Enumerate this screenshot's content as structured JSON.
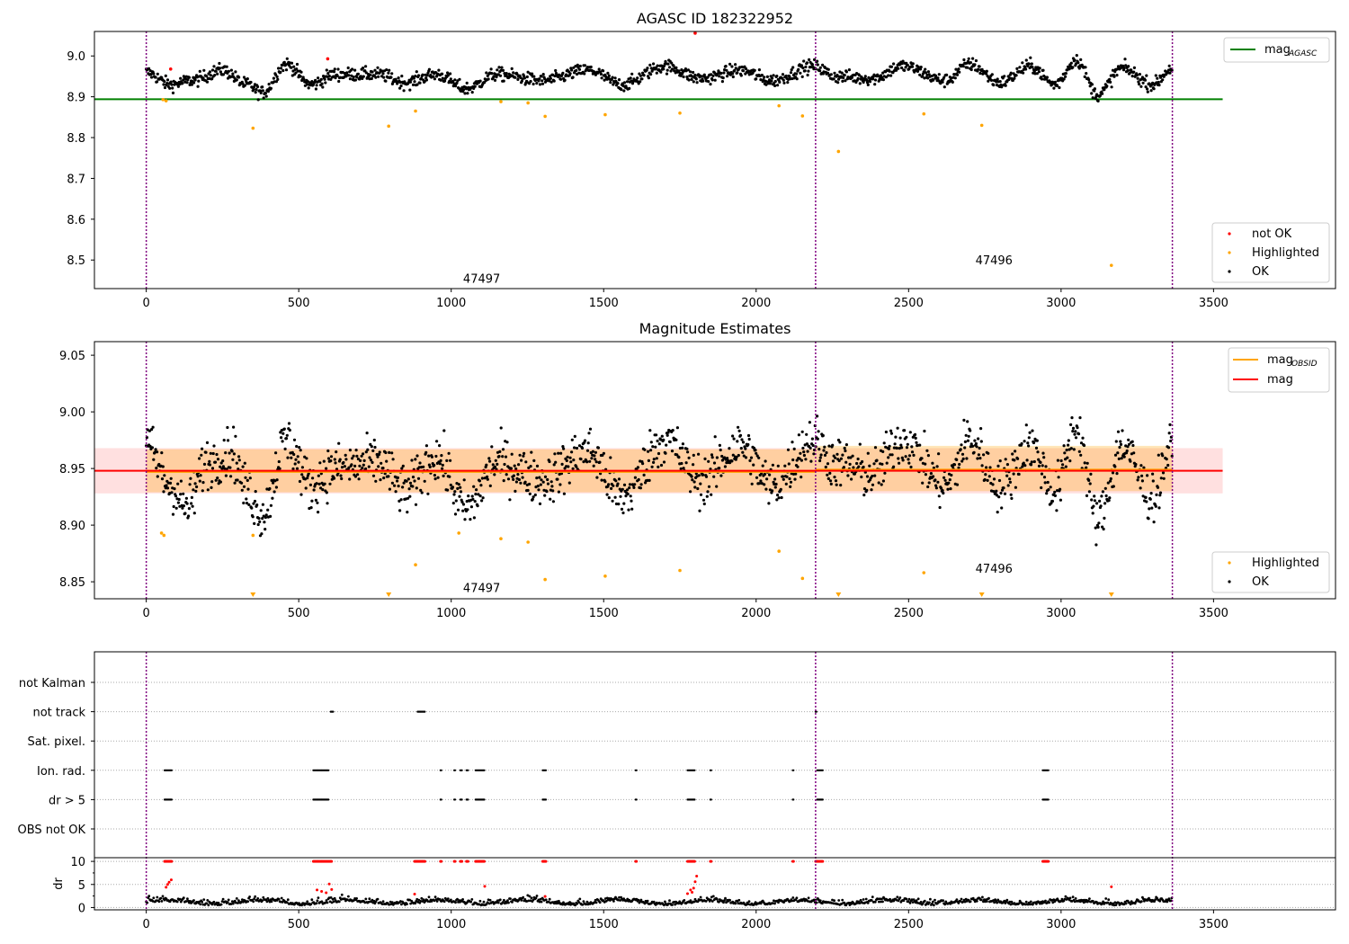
{
  "chart_data": [
    {
      "type": "scatter",
      "title": "AGASC ID 182322952",
      "xlim": [
        -170,
        3900
      ],
      "ylim": [
        8.43,
        9.06
      ],
      "xticks": [
        "0",
        "500",
        "1000",
        "1500",
        "2000",
        "2500",
        "3000",
        "3500"
      ],
      "yticks": [
        "8.5",
        "8.6",
        "8.7",
        "8.8",
        "8.9",
        "9.0"
      ],
      "vlines": [
        0,
        2195,
        3365
      ],
      "obsid_labels": [
        {
          "text": "47497",
          "x": 1100,
          "y": 8.455
        },
        {
          "text": "47496",
          "x": 2780,
          "y": 8.5
        }
      ],
      "mag_agasc": {
        "value": 8.894,
        "x_range": [
          -170,
          3530
        ],
        "color": "#008000"
      },
      "legend_lines": [
        {
          "label": "mag",
          "sub": "AGASC",
          "color": "#008000"
        }
      ],
      "legend_points": [
        {
          "label": "not OK",
          "color": "#ff0000"
        },
        {
          "label": "Highlighted",
          "color": "#ffa500"
        },
        {
          "label": "OK",
          "color": "#000000"
        }
      ],
      "ok_trend": [
        [
          0,
          8.96
        ],
        [
          80,
          8.93
        ],
        [
          150,
          8.94
        ],
        [
          250,
          8.965
        ],
        [
          330,
          8.93
        ],
        [
          380,
          8.91
        ],
        [
          460,
          8.98
        ],
        [
          540,
          8.93
        ],
        [
          620,
          8.955
        ],
        [
          760,
          8.955
        ],
        [
          850,
          8.935
        ],
        [
          950,
          8.955
        ],
        [
          1050,
          8.92
        ],
        [
          1150,
          8.955
        ],
        [
          1300,
          8.94
        ],
        [
          1450,
          8.965
        ],
        [
          1560,
          8.93
        ],
        [
          1700,
          8.975
        ],
        [
          1820,
          8.945
        ],
        [
          1950,
          8.965
        ],
        [
          2050,
          8.94
        ],
        [
          2190,
          8.975
        ],
        [
          2260,
          8.95
        ],
        [
          2380,
          8.945
        ],
        [
          2480,
          8.975
        ],
        [
          2620,
          8.94
        ],
        [
          2700,
          8.98
        ],
        [
          2800,
          8.935
        ],
        [
          2900,
          8.975
        ],
        [
          2980,
          8.93
        ],
        [
          3050,
          8.99
        ],
        [
          3120,
          8.905
        ],
        [
          3200,
          8.97
        ],
        [
          3300,
          8.93
        ],
        [
          3365,
          8.97
        ]
      ],
      "not_ok_points": [
        [
          80,
          8.968
        ],
        [
          595,
          8.993
        ],
        [
          1800,
          9.056
        ]
      ],
      "highlighted_points": [
        [
          55,
          8.893
        ],
        [
          65,
          8.89
        ],
        [
          350,
          8.823
        ],
        [
          795,
          8.828
        ],
        [
          883,
          8.865
        ],
        [
          1163,
          8.888
        ],
        [
          1252,
          8.885
        ],
        [
          1308,
          8.852
        ],
        [
          1505,
          8.856
        ],
        [
          1750,
          8.86
        ],
        [
          2075,
          8.878
        ],
        [
          2152,
          8.853
        ],
        [
          2270,
          8.766
        ],
        [
          2550,
          8.858
        ],
        [
          2740,
          8.83
        ],
        [
          3165,
          8.487
        ]
      ]
    },
    {
      "type": "scatter",
      "title": "Magnitude Estimates",
      "xlim": [
        -170,
        3900
      ],
      "ylim": [
        8.835,
        9.062
      ],
      "xticks": [
        "0",
        "500",
        "1000",
        "1500",
        "2000",
        "2500",
        "3000",
        "3500"
      ],
      "yticks": [
        "8.85",
        "8.90",
        "8.95",
        "9.00",
        "9.05"
      ],
      "vlines": [
        0,
        2195,
        3365
      ],
      "obsid_labels": [
        {
          "text": "47497",
          "x": 1100,
          "y": 8.845
        },
        {
          "text": "47496",
          "x": 2780,
          "y": 8.862
        }
      ],
      "mag": {
        "value": 8.948,
        "band": [
          8.928,
          8.968
        ],
        "x_range": [
          -170,
          3530
        ],
        "color": "#ff0000"
      },
      "mag_obsid": [
        {
          "value": 8.947,
          "band": [
            8.929,
            8.967
          ],
          "x_range": [
            0,
            2195
          ],
          "color": "#ffa500"
        },
        {
          "value": 8.949,
          "band": [
            8.93,
            8.97
          ],
          "x_range": [
            2195,
            3365
          ],
          "color": "#ffa500"
        }
      ],
      "legend_lines": [
        {
          "label": "mag",
          "sub": "OBSID",
          "color": "#ffa500"
        },
        {
          "label": "mag",
          "sub": "",
          "color": "#ff0000"
        }
      ],
      "legend_points": [
        {
          "label": "Highlighted",
          "color": "#ffa500"
        },
        {
          "label": "OK",
          "color": "#000000"
        }
      ],
      "ok_trend": [
        [
          0,
          8.97
        ],
        [
          80,
          8.935
        ],
        [
          130,
          8.915
        ],
        [
          200,
          8.955
        ],
        [
          280,
          8.965
        ],
        [
          330,
          8.93
        ],
        [
          380,
          8.91
        ],
        [
          460,
          8.975
        ],
        [
          540,
          8.935
        ],
        [
          620,
          8.95
        ],
        [
          760,
          8.955
        ],
        [
          850,
          8.93
        ],
        [
          950,
          8.96
        ],
        [
          1050,
          8.915
        ],
        [
          1150,
          8.955
        ],
        [
          1300,
          8.94
        ],
        [
          1450,
          8.965
        ],
        [
          1560,
          8.925
        ],
        [
          1700,
          8.975
        ],
        [
          1820,
          8.94
        ],
        [
          1950,
          8.97
        ],
        [
          2050,
          8.935
        ],
        [
          2190,
          8.975
        ],
        [
          2260,
          8.955
        ],
        [
          2380,
          8.945
        ],
        [
          2480,
          8.975
        ],
        [
          2620,
          8.935
        ],
        [
          2700,
          8.975
        ],
        [
          2800,
          8.935
        ],
        [
          2900,
          8.97
        ],
        [
          2980,
          8.93
        ],
        [
          3050,
          8.985
        ],
        [
          3120,
          8.905
        ],
        [
          3200,
          8.97
        ],
        [
          3300,
          8.925
        ],
        [
          3365,
          8.97
        ]
      ],
      "highlighted_points": [
        [
          50,
          8.893
        ],
        [
          58,
          8.891
        ],
        [
          350,
          8.891
        ],
        [
          883,
          8.865
        ],
        [
          1025,
          8.893
        ],
        [
          1163,
          8.888
        ],
        [
          1252,
          8.885
        ],
        [
          1308,
          8.852
        ],
        [
          1505,
          8.855
        ],
        [
          1750,
          8.86
        ],
        [
          2075,
          8.877
        ],
        [
          2152,
          8.853
        ],
        [
          2550,
          8.858
        ]
      ],
      "highlighted_below": [
        350,
        795,
        2270,
        2740,
        3165
      ]
    },
    {
      "type": "scatter",
      "title": "",
      "xlim": [
        -170,
        3900
      ],
      "xticks": [
        "0",
        "500",
        "1000",
        "1500",
        "2000",
        "2500",
        "3000",
        "3500"
      ],
      "vlines": [
        0,
        2195,
        3365
      ],
      "flag_labels": [
        "not Kalman",
        "not track",
        "Sat. pixel.",
        "Ion. rad.",
        "dr > 5",
        "OBS not OK"
      ],
      "flag_ranges": {
        "not Kalman": [],
        "not track": [
          [
            605,
            615
          ],
          [
            890,
            915
          ],
          [
            2195,
            2200
          ]
        ],
        "Sat. pixel.": [],
        "Ion. rad.": [
          [
            60,
            85
          ],
          [
            548,
            600
          ],
          [
            965,
            970
          ],
          [
            1010,
            1015
          ],
          [
            1030,
            1036
          ],
          [
            1050,
            1056
          ],
          [
            1080,
            1110
          ],
          [
            1300,
            1312
          ],
          [
            1605,
            1608
          ],
          [
            1775,
            1800
          ],
          [
            1850,
            1853
          ],
          [
            2120,
            2123
          ],
          [
            2200,
            2220
          ],
          [
            2940,
            2960
          ]
        ],
        "dr > 5": [
          [
            60,
            85
          ],
          [
            548,
            600
          ],
          [
            965,
            970
          ],
          [
            1010,
            1015
          ],
          [
            1030,
            1036
          ],
          [
            1050,
            1056
          ],
          [
            1080,
            1110
          ],
          [
            1300,
            1312
          ],
          [
            1605,
            1608
          ],
          [
            1775,
            1800
          ],
          [
            1850,
            1853
          ],
          [
            2120,
            2123
          ],
          [
            2200,
            2220
          ],
          [
            2940,
            2960
          ]
        ],
        "OBS not OK": []
      },
      "dr_ylabel": "dr",
      "dr_yticks": [
        "0",
        "5",
        "10"
      ],
      "dr_ylim": [
        -0.5,
        10.8
      ],
      "dr_red_ranges": [
        [
          60,
          85
        ],
        [
          548,
          610
        ],
        [
          880,
          915
        ],
        [
          965,
          970
        ],
        [
          1010,
          1015
        ],
        [
          1030,
          1036
        ],
        [
          1050,
          1056
        ],
        [
          1080,
          1110
        ],
        [
          1300,
          1312
        ],
        [
          1605,
          1608
        ],
        [
          1775,
          1800
        ],
        [
          1850,
          1853
        ],
        [
          2120,
          2123
        ],
        [
          2195,
          2220
        ],
        [
          2940,
          2960
        ]
      ],
      "dr_red_low_points": [
        [
          65,
          4.4
        ],
        [
          70,
          5.0
        ],
        [
          75,
          5.5
        ],
        [
          82,
          6.0
        ],
        [
          560,
          3.8
        ],
        [
          575,
          3.5
        ],
        [
          590,
          3.2
        ],
        [
          600,
          5.1
        ],
        [
          608,
          3.9
        ],
        [
          880,
          2.9
        ],
        [
          1110,
          4.6
        ],
        [
          1308,
          2.4
        ],
        [
          1775,
          3.0
        ],
        [
          1785,
          3.8
        ],
        [
          1790,
          3.3
        ],
        [
          1795,
          4.2
        ],
        [
          1800,
          5.6
        ],
        [
          1805,
          6.8
        ],
        [
          3165,
          4.5
        ]
      ]
    }
  ]
}
